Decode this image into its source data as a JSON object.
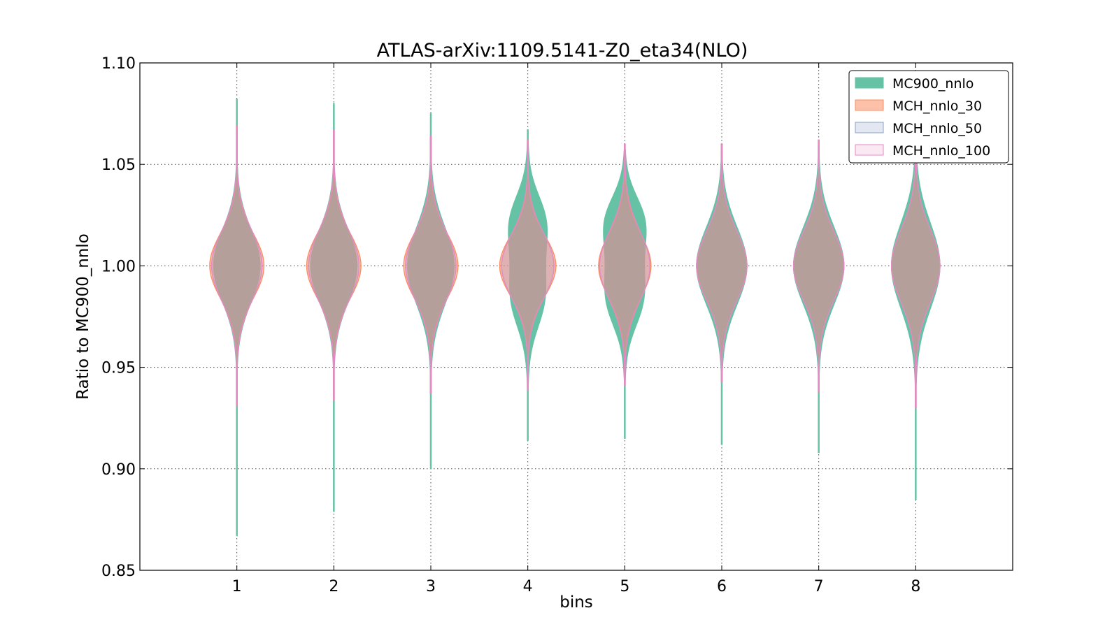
{
  "chart_data": {
    "type": "violin",
    "title": "ATLAS-arXiv:1109.5141-Z0_eta34(NLO)",
    "xlabel": "bins",
    "ylabel": "Ratio to MC900_nnlo",
    "x_ticks": [
      "1",
      "2",
      "3",
      "4",
      "5",
      "6",
      "7",
      "8"
    ],
    "y_ticks": [
      "0.85",
      "0.90",
      "0.95",
      "1.00",
      "1.05",
      "1.10"
    ],
    "xlim": [
      0,
      9
    ],
    "ylim": [
      0.85,
      1.1
    ],
    "grid": true,
    "legend_position": "top-right",
    "categories": [
      1,
      2,
      3,
      4,
      5,
      6,
      7,
      8
    ],
    "series": [
      {
        "name": "MC900_nnlo",
        "fill": "#66c2a5",
        "edge": "#66c2a5",
        "alpha": 1.0,
        "violins": [
          {
            "min": 0.867,
            "max": 1.082,
            "half_width": 0.24,
            "sigma": 0.018
          },
          {
            "min": 0.879,
            "max": 1.08,
            "half_width": 0.24,
            "sigma": 0.018
          },
          {
            "min": 0.9,
            "max": 1.075,
            "half_width": 0.24,
            "sigma": 0.019
          },
          {
            "min": 0.914,
            "max": 1.067,
            "half_width": 0.2,
            "sigma": 0.022,
            "bimodal": true
          },
          {
            "min": 0.915,
            "max": 1.057,
            "half_width": 0.22,
            "sigma": 0.021,
            "bimodal": true
          },
          {
            "min": 0.912,
            "max": 1.058,
            "half_width": 0.26,
            "sigma": 0.019
          },
          {
            "min": 0.908,
            "max": 1.059,
            "half_width": 0.26,
            "sigma": 0.019
          },
          {
            "min": 0.885,
            "max": 1.063,
            "half_width": 0.25,
            "sigma": 0.021
          }
        ]
      },
      {
        "name": "MCH_nnlo_30",
        "fill": "#fc8d62",
        "edge": "#fc8d62",
        "alpha": 0.55,
        "violins": [
          {
            "min": 0.931,
            "max": 1.069,
            "half_width": 0.28,
            "sigma": 0.016
          },
          {
            "min": 0.934,
            "max": 1.067,
            "half_width": 0.28,
            "sigma": 0.016
          },
          {
            "min": 0.937,
            "max": 1.064,
            "half_width": 0.28,
            "sigma": 0.016
          },
          {
            "min": 0.939,
            "max": 1.062,
            "half_width": 0.29,
            "sigma": 0.015
          },
          {
            "min": 0.941,
            "max": 1.06,
            "half_width": 0.27,
            "sigma": 0.016
          },
          {
            "min": 0.943,
            "max": 1.06,
            "half_width": 0.26,
            "sigma": 0.017
          },
          {
            "min": 0.938,
            "max": 1.062,
            "half_width": 0.26,
            "sigma": 0.017
          },
          {
            "min": 0.93,
            "max": 1.063,
            "half_width": 0.25,
            "sigma": 0.018
          }
        ]
      },
      {
        "name": "MCH_nnlo_50",
        "fill": "#8da0cb",
        "edge": "#8da0cb",
        "alpha": 0.25,
        "violins": [
          {
            "min": 0.931,
            "max": 1.069,
            "half_width": 0.26,
            "sigma": 0.017
          },
          {
            "min": 0.934,
            "max": 1.067,
            "half_width": 0.26,
            "sigma": 0.017
          },
          {
            "min": 0.937,
            "max": 1.064,
            "half_width": 0.26,
            "sigma": 0.017
          },
          {
            "min": 0.939,
            "max": 1.062,
            "half_width": 0.27,
            "sigma": 0.016
          },
          {
            "min": 0.941,
            "max": 1.06,
            "half_width": 0.26,
            "sigma": 0.017
          },
          {
            "min": 0.943,
            "max": 1.06,
            "half_width": 0.26,
            "sigma": 0.017
          },
          {
            "min": 0.938,
            "max": 1.062,
            "half_width": 0.26,
            "sigma": 0.017
          },
          {
            "min": 0.93,
            "max": 1.063,
            "half_width": 0.25,
            "sigma": 0.018
          }
        ]
      },
      {
        "name": "MCH_nnlo_100",
        "fill": "#e78ac3",
        "edge": "#e78ac3",
        "alpha": 0.15,
        "violins": [
          {
            "min": 0.931,
            "max": 1.069,
            "half_width": 0.26,
            "sigma": 0.017
          },
          {
            "min": 0.934,
            "max": 1.067,
            "half_width": 0.26,
            "sigma": 0.017
          },
          {
            "min": 0.937,
            "max": 1.064,
            "half_width": 0.26,
            "sigma": 0.017
          },
          {
            "min": 0.939,
            "max": 1.062,
            "half_width": 0.27,
            "sigma": 0.016
          },
          {
            "min": 0.941,
            "max": 1.06,
            "half_width": 0.26,
            "sigma": 0.017
          },
          {
            "min": 0.943,
            "max": 1.06,
            "half_width": 0.26,
            "sigma": 0.017
          },
          {
            "min": 0.938,
            "max": 1.062,
            "half_width": 0.26,
            "sigma": 0.017
          },
          {
            "min": 0.93,
            "max": 1.063,
            "half_width": 0.25,
            "sigma": 0.018
          }
        ]
      }
    ]
  }
}
